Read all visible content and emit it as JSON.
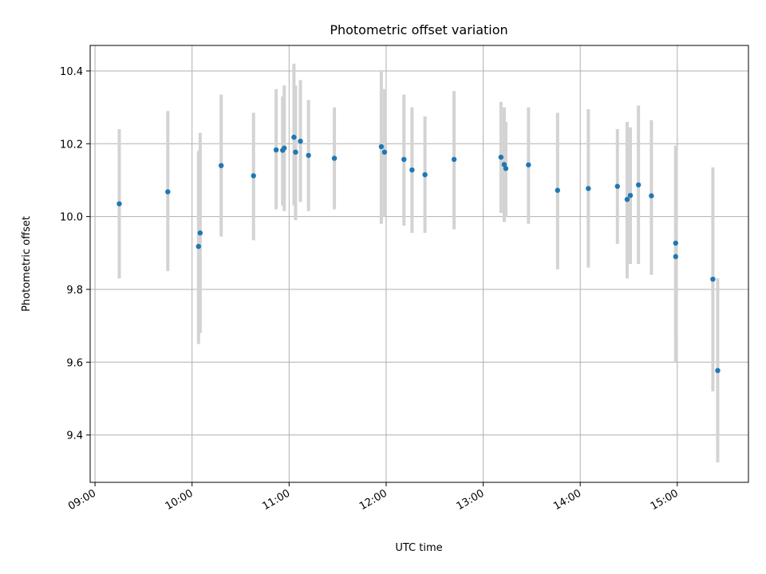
{
  "chart_data": {
    "type": "scatter",
    "title": "Photometric offset variation",
    "xlabel": "UTC time",
    "ylabel": "Photometric offset",
    "x_ticks": [
      "09:00",
      "10:00",
      "11:00",
      "12:00",
      "13:00",
      "14:00",
      "15:00"
    ],
    "y_ticks": [
      "9.4",
      "9.6",
      "9.8",
      "10.0",
      "10.2",
      "10.4"
    ],
    "xlim": [
      "08:57",
      "15:44"
    ],
    "ylim": [
      9.27,
      10.47
    ],
    "grid": true,
    "point_color": "#1f77b4",
    "errorbar_color": "#d3d3d3",
    "points": [
      {
        "t": "09:15",
        "y": 10.035,
        "lo": 9.83,
        "hi": 10.24
      },
      {
        "t": "09:45",
        "y": 10.068,
        "lo": 9.85,
        "hi": 10.29
      },
      {
        "t": "10:04",
        "y": 9.918,
        "lo": 9.65,
        "hi": 10.18
      },
      {
        "t": "10:05",
        "y": 9.955,
        "lo": 9.68,
        "hi": 10.23
      },
      {
        "t": "10:18",
        "y": 10.14,
        "lo": 9.945,
        "hi": 10.335
      },
      {
        "t": "10:38",
        "y": 10.112,
        "lo": 9.935,
        "hi": 10.285
      },
      {
        "t": "10:52",
        "y": 10.183,
        "lo": 10.02,
        "hi": 10.35
      },
      {
        "t": "10:56",
        "y": 10.182,
        "lo": 10.03,
        "hi": 10.33
      },
      {
        "t": "10:57",
        "y": 10.188,
        "lo": 10.015,
        "hi": 10.36
      },
      {
        "t": "11:03",
        "y": 10.218,
        "lo": 10.03,
        "hi": 10.42
      },
      {
        "t": "11:04",
        "y": 10.177,
        "lo": 9.99,
        "hi": 10.36
      },
      {
        "t": "11:07",
        "y": 10.207,
        "lo": 10.04,
        "hi": 10.375
      },
      {
        "t": "11:12",
        "y": 10.168,
        "lo": 10.015,
        "hi": 10.32
      },
      {
        "t": "11:28",
        "y": 10.16,
        "lo": 10.02,
        "hi": 10.3
      },
      {
        "t": "11:57",
        "y": 10.192,
        "lo": 9.98,
        "hi": 10.4
      },
      {
        "t": "11:59",
        "y": 10.177,
        "lo": 10.0,
        "hi": 10.35
      },
      {
        "t": "12:11",
        "y": 10.157,
        "lo": 9.975,
        "hi": 10.335
      },
      {
        "t": "12:16",
        "y": 10.128,
        "lo": 9.955,
        "hi": 10.3
      },
      {
        "t": "12:24",
        "y": 10.115,
        "lo": 9.955,
        "hi": 10.275
      },
      {
        "t": "12:42",
        "y": 10.157,
        "lo": 9.965,
        "hi": 10.345
      },
      {
        "t": "13:11",
        "y": 10.163,
        "lo": 10.01,
        "hi": 10.315
      },
      {
        "t": "13:13",
        "y": 10.143,
        "lo": 9.985,
        "hi": 10.3
      },
      {
        "t": "13:14",
        "y": 10.132,
        "lo": 10.0,
        "hi": 10.26
      },
      {
        "t": "13:28",
        "y": 10.142,
        "lo": 9.98,
        "hi": 10.3
      },
      {
        "t": "13:46",
        "y": 10.072,
        "lo": 9.855,
        "hi": 10.285
      },
      {
        "t": "14:05",
        "y": 10.077,
        "lo": 9.86,
        "hi": 10.295
      },
      {
        "t": "14:23",
        "y": 10.083,
        "lo": 9.925,
        "hi": 10.24
      },
      {
        "t": "14:29",
        "y": 10.047,
        "lo": 9.83,
        "hi": 10.26
      },
      {
        "t": "14:31",
        "y": 10.058,
        "lo": 9.87,
        "hi": 10.245
      },
      {
        "t": "14:36",
        "y": 10.087,
        "lo": 9.87,
        "hi": 10.305
      },
      {
        "t": "14:44",
        "y": 10.057,
        "lo": 9.84,
        "hi": 10.265
      },
      {
        "t": "14:59",
        "y": 9.927,
        "lo": 9.66,
        "hi": 10.195
      },
      {
        "t": "14:59",
        "y": 9.89,
        "lo": 9.6,
        "hi": 10.18
      },
      {
        "t": "15:22",
        "y": 9.828,
        "lo": 9.52,
        "hi": 10.135
      },
      {
        "t": "15:25",
        "y": 9.577,
        "lo": 9.325,
        "hi": 9.83
      }
    ]
  }
}
